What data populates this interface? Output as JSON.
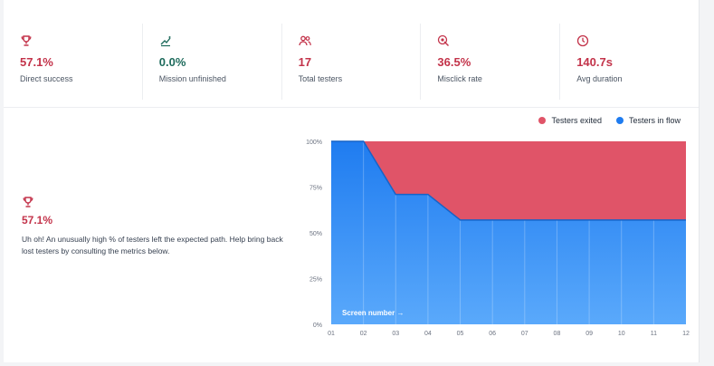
{
  "metrics": [
    {
      "icon": "trophy-icon",
      "value": "57.1%",
      "label": "Direct success",
      "color": "#c3334a"
    },
    {
      "icon": "mission-flag-icon",
      "value": "0.0%",
      "label": "Mission unfinished",
      "color": "#1e6b5c"
    },
    {
      "icon": "users-icon",
      "value": "17",
      "label": "Total testers",
      "color": "#c3334a"
    },
    {
      "icon": "target-click-icon",
      "value": "36.5%",
      "label": "Misclick rate",
      "color": "#c3334a"
    },
    {
      "icon": "clock-icon",
      "value": "140.7s",
      "label": "Avg duration",
      "color": "#c3334a"
    }
  ],
  "insight": {
    "icon": "trophy-icon",
    "value": "57.1%",
    "text": "Uh oh! An unusually high % of testers left the expected path. Help bring back lost testers by consulting the metrics below."
  },
  "legend": [
    {
      "label": "Testers exited",
      "color": "#e05468"
    },
    {
      "label": "Testers in flow",
      "color": "#1f7cf0"
    }
  ],
  "chart_data": {
    "type": "area",
    "title": "",
    "xlabel": "Screen number →",
    "ylabel": "",
    "x": [
      "01",
      "02",
      "03",
      "04",
      "05",
      "06",
      "07",
      "08",
      "09",
      "10",
      "11",
      "12"
    ],
    "ylim": [
      0,
      100
    ],
    "yticks": [
      "100%",
      "75%",
      "50%",
      "25%",
      "0%"
    ],
    "series": [
      {
        "name": "Testers in flow",
        "values": [
          100,
          100,
          71,
          71,
          57,
          57,
          57,
          57,
          57,
          57,
          57,
          57
        ]
      },
      {
        "name": "Testers exited",
        "values": [
          0,
          0,
          29,
          29,
          43,
          43,
          43,
          43,
          43,
          43,
          43,
          43
        ]
      }
    ]
  }
}
